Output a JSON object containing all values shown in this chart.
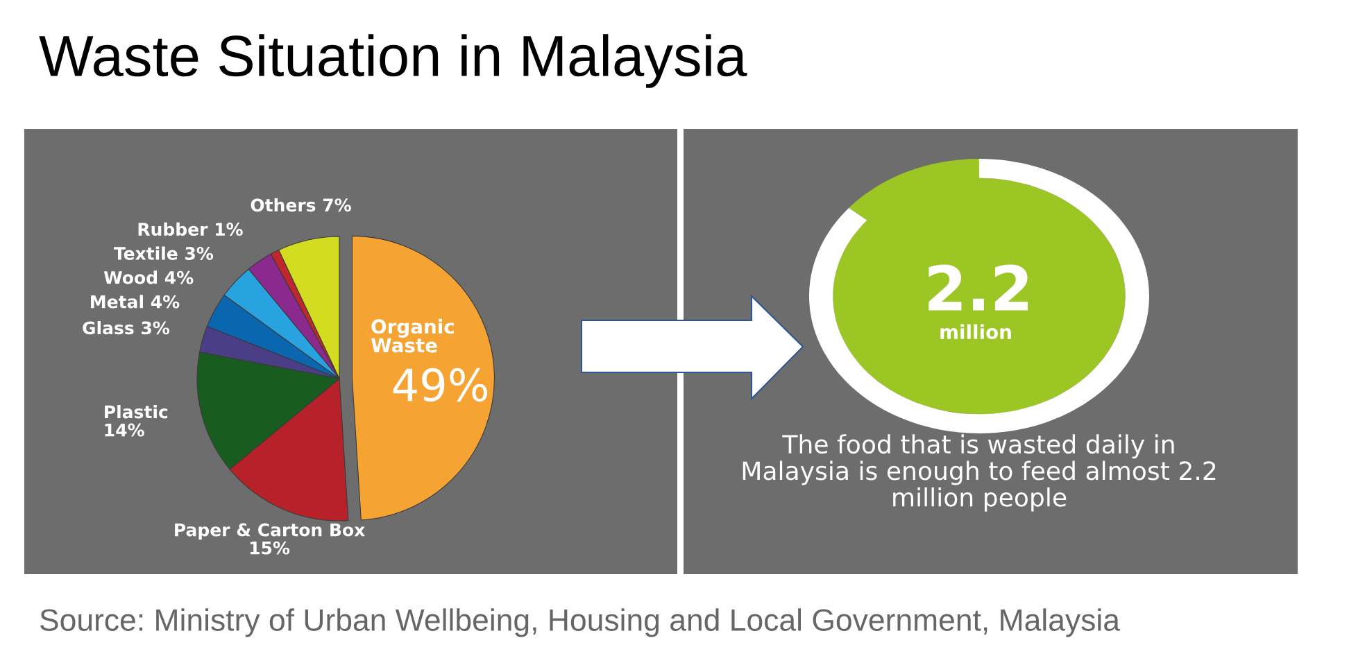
{
  "chart_data": [
    {
      "type": "pie",
      "title": "Waste Situation in Malaysia",
      "categories": [
        "Organic Waste",
        "Paper & Carton Box",
        "Plastic",
        "Glass",
        "Metal",
        "Wood",
        "Textile",
        "Rubber",
        "Others"
      ],
      "values": [
        49,
        15,
        14,
        3,
        4,
        4,
        3,
        1,
        7
      ],
      "value_labels": [
        "49%",
        "15%",
        "14%",
        "3%",
        "4%",
        "4%",
        "3%",
        "1%",
        "7%"
      ],
      "colors": [
        "#f5a332",
        "#b7222a",
        "#195c20",
        "#4a3f87",
        "#0b66b0",
        "#29a3df",
        "#8b2a8e",
        "#c0272d",
        "#d3dc21"
      ],
      "annotations": [
        "Source: Ministry of Urban Wellbeing, Housing and Local Government, Malaysia"
      ]
    },
    {
      "type": "other",
      "annotations": [
        "2.2",
        "million",
        "The food that is wasted daily in\nMalaysia is enough to feed almost 2.2\nmillion people"
      ]
    }
  ]
}
